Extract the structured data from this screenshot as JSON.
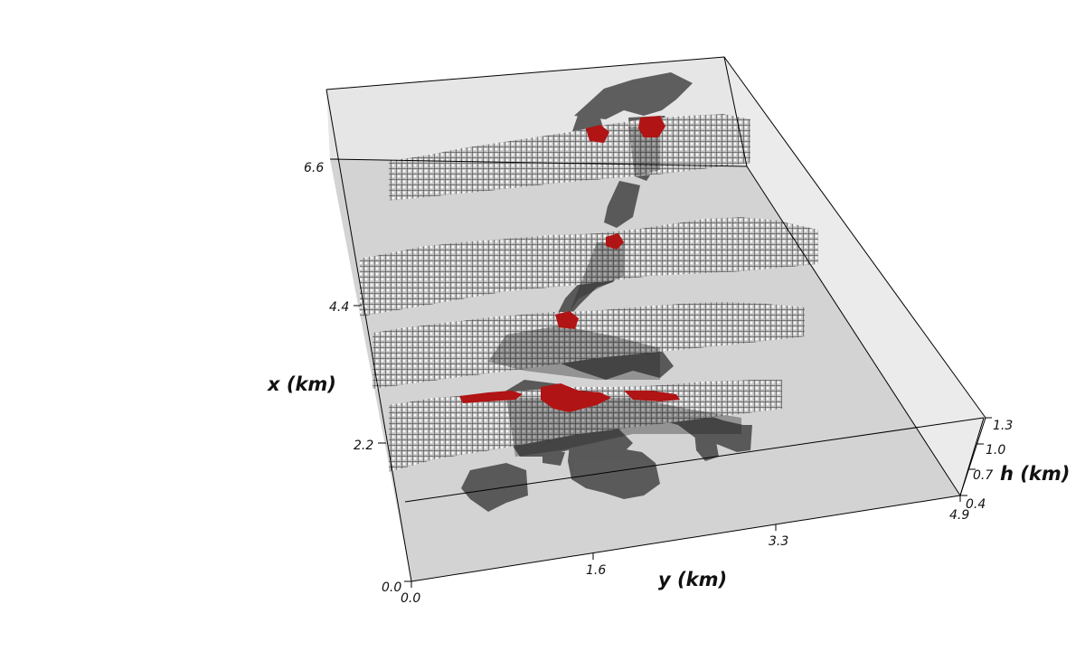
{
  "axes": {
    "x": {
      "label": "x (km)",
      "ticks": [
        "0.0",
        "2.2",
        "4.4",
        "6.6"
      ]
    },
    "y": {
      "label": "y (km)",
      "ticks": [
        "0.0",
        "1.6",
        "3.3",
        "4.9"
      ]
    },
    "h": {
      "label": "h (km)",
      "ticks": [
        "0.4",
        "0.7",
        "1.0",
        "1.3"
      ]
    }
  },
  "scene": {
    "slice_count": 4,
    "colors": {
      "slice_fill": "#b8b8b8",
      "slice_grid": "#3a3a3a",
      "body_shadow": "#2b2b2b",
      "highlight": "#b01414",
      "base_floor": "#d4d4d4",
      "back_wall": "#e6e6e6",
      "frame": "#000000"
    }
  }
}
